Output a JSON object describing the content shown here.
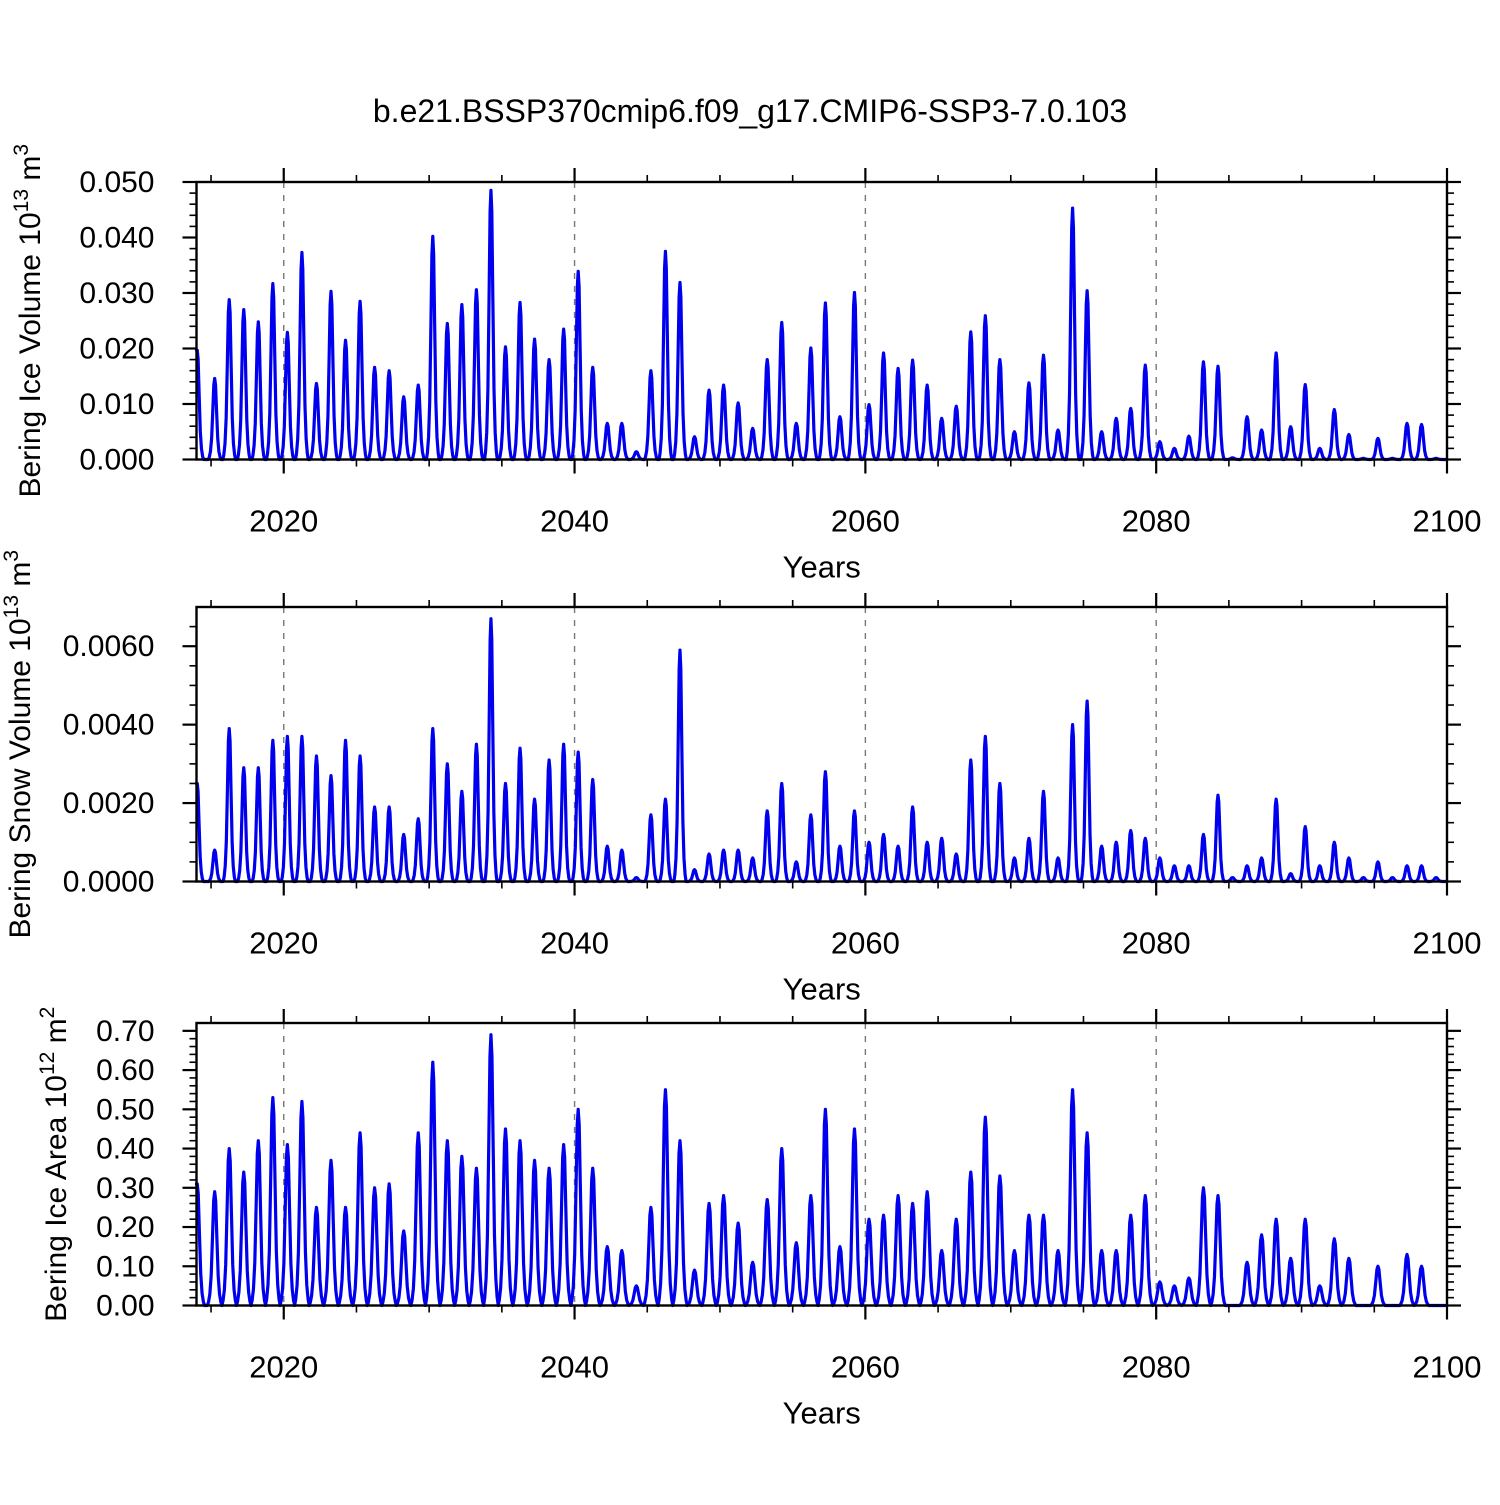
{
  "title": "b.e21.BSSP370cmip6.f09_g17.CMIP6-SSP3-7.0.103",
  "figure": {
    "background": "#ffffff",
    "line_color": "#0000EE",
    "frame_color": "#000000",
    "grid_color": "#777777",
    "text_color": "#000000"
  },
  "xaxis": {
    "label": "Years",
    "min": 2014,
    "max": 2100,
    "major_ticks": [
      2020,
      2040,
      2060,
      2080,
      2100
    ],
    "major_tick_labels": [
      "2020",
      "2040",
      "2060",
      "2080",
      "2100"
    ],
    "minor_tick_step": 5,
    "grid_years": [
      2020,
      2040,
      2060,
      2080
    ]
  },
  "seasonal_pulse": {
    "note": "Monthly seasonal cycle: each year the series rises from zero to a winter/spring peak then returns to zero in summer. Pulse template relative to annual peak.",
    "dt_offsets": [
      -0.44,
      -0.37,
      -0.29,
      -0.21,
      -0.13,
      -0.06,
      0,
      0.06,
      0.13,
      0.21,
      0.29,
      0.37,
      0.44
    ],
    "fractions": [
      0,
      0.03,
      0.1,
      0.26,
      0.6,
      0.92,
      1,
      0.92,
      0.6,
      0.26,
      0.1,
      0.03,
      0
    ],
    "peak_month_offset": 0.25
  },
  "chart_data": [
    {
      "type": "line",
      "name": "bering-ice-volume",
      "ylabel": "Bering Ice Volume 10^13 m^3",
      "ylabel_parts": [
        {
          "t": "Bering Ice Volume 10"
        },
        {
          "t": "13",
          "sup": true
        },
        {
          "t": " m"
        },
        {
          "t": "3",
          "sup": true
        }
      ],
      "ylim": [
        0,
        0.05
      ],
      "ytick_values": [
        0,
        0.01,
        0.02,
        0.03,
        0.04,
        0.05
      ],
      "ytick_labels": [
        "0.000",
        "0.010",
        "0.020",
        "0.030",
        "0.040",
        "0.050"
      ],
      "yminor_step": 0.002,
      "width_scale": 1.0,
      "start_year": 2014,
      "annual_max": [
        0.0197,
        0.0146,
        0.0288,
        0.027,
        0.0248,
        0.0317,
        0.0229,
        0.0373,
        0.0137,
        0.0303,
        0.0215,
        0.0285,
        0.0166,
        0.016,
        0.0113,
        0.0134,
        0.0402,
        0.0245,
        0.0279,
        0.0306,
        0.0485,
        0.0203,
        0.0283,
        0.0217,
        0.018,
        0.0235,
        0.0339,
        0.0166,
        0.0065,
        0.0065,
        0.0014,
        0.016,
        0.0375,
        0.0319,
        0.0041,
        0.0125,
        0.0134,
        0.0102,
        0.0056,
        0.018,
        0.0247,
        0.0065,
        0.0201,
        0.0282,
        0.0077,
        0.0301,
        0.0099,
        0.0192,
        0.0164,
        0.0179,
        0.0134,
        0.0074,
        0.0096,
        0.023,
        0.0259,
        0.018,
        0.005,
        0.0138,
        0.0188,
        0.0053,
        0.0453,
        0.0304,
        0.005,
        0.0074,
        0.0092,
        0.017,
        0.0032,
        0.002,
        0.0042,
        0.0176,
        0.0168,
        0.0003,
        0.0077,
        0.0053,
        0.0192,
        0.0059,
        0.0135,
        0.002,
        0.009,
        0.0045,
        0.0002,
        0.0038,
        0.0002,
        0.0065,
        0.0063,
        0.0002
      ]
    },
    {
      "type": "line",
      "name": "bering-snow-volume",
      "ylabel": "Bering Snow Volume 10^13 m^3",
      "ylabel_parts": [
        {
          "t": "Bering Snow Volume 10"
        },
        {
          "t": "13",
          "sup": true
        },
        {
          "t": " m"
        },
        {
          "t": "3",
          "sup": true
        }
      ],
      "ylim": [
        0,
        0.007
      ],
      "ytick_values": [
        0,
        0.002,
        0.004,
        0.006
      ],
      "ytick_labels": [
        "0.0000",
        "0.0020",
        "0.0040",
        "0.0060"
      ],
      "yminor_step": 0.0005,
      "width_scale": 0.95,
      "start_year": 2014,
      "annual_max": [
        0.0025,
        0.0008,
        0.0039,
        0.0029,
        0.0029,
        0.0036,
        0.0037,
        0.0037,
        0.0032,
        0.0027,
        0.0036,
        0.0032,
        0.0019,
        0.0019,
        0.0012,
        0.0016,
        0.0039,
        0.003,
        0.0023,
        0.0035,
        0.0067,
        0.0025,
        0.0034,
        0.0021,
        0.0031,
        0.0035,
        0.0033,
        0.0026,
        0.0009,
        0.0008,
        0.0001,
        0.0017,
        0.0021,
        0.0059,
        0.0003,
        0.0007,
        0.0008,
        0.0008,
        0.0006,
        0.0018,
        0.0025,
        0.0005,
        0.0017,
        0.0028,
        0.0009,
        0.0018,
        0.001,
        0.0012,
        0.0009,
        0.0019,
        0.001,
        0.0011,
        0.0007,
        0.0031,
        0.0037,
        0.0025,
        0.0006,
        0.0011,
        0.0023,
        0.0006,
        0.004,
        0.0046,
        0.0009,
        0.001,
        0.0013,
        0.0011,
        0.0006,
        0.0004,
        0.0004,
        0.0012,
        0.0022,
        0.0001,
        0.0004,
        0.0006,
        0.0021,
        0.0002,
        0.0014,
        0.0004,
        0.001,
        0.0006,
        0.0001,
        0.0005,
        0.0001,
        0.0004,
        0.0004,
        0.0001
      ]
    },
    {
      "type": "line",
      "name": "bering-ice-area",
      "ylabel": "Bering Ice Area 10^12 m^2",
      "ylabel_parts": [
        {
          "t": "Bering Ice Area 10"
        },
        {
          "t": "12",
          "sup": true
        },
        {
          "t": " m"
        },
        {
          "t": "2",
          "sup": true
        }
      ],
      "ylim": [
        0,
        0.72
      ],
      "ytick_values": [
        0,
        0.1,
        0.2,
        0.3,
        0.4,
        0.5,
        0.6,
        0.7
      ],
      "ytick_labels": [
        "0.00",
        "0.10",
        "0.20",
        "0.30",
        "0.40",
        "0.50",
        "0.60",
        "0.70"
      ],
      "yminor_step": 0.02,
      "width_scale": 1.15,
      "start_year": 2014,
      "annual_max": [
        0.31,
        0.29,
        0.4,
        0.34,
        0.42,
        0.53,
        0.41,
        0.52,
        0.25,
        0.37,
        0.25,
        0.44,
        0.3,
        0.31,
        0.19,
        0.44,
        0.62,
        0.42,
        0.38,
        0.35,
        0.69,
        0.45,
        0.42,
        0.37,
        0.35,
        0.41,
        0.5,
        0.35,
        0.15,
        0.14,
        0.05,
        0.25,
        0.55,
        0.42,
        0.09,
        0.26,
        0.28,
        0.21,
        0.11,
        0.27,
        0.4,
        0.16,
        0.28,
        0.5,
        0.15,
        0.45,
        0.22,
        0.23,
        0.28,
        0.26,
        0.29,
        0.14,
        0.22,
        0.34,
        0.48,
        0.33,
        0.14,
        0.23,
        0.23,
        0.14,
        0.55,
        0.44,
        0.14,
        0.14,
        0.23,
        0.28,
        0.06,
        0.05,
        0.07,
        0.3,
        0.28,
        0.0,
        0.11,
        0.18,
        0.22,
        0.12,
        0.22,
        0.05,
        0.17,
        0.12,
        0.0,
        0.1,
        0.0,
        0.13,
        0.1,
        0.0
      ]
    }
  ]
}
